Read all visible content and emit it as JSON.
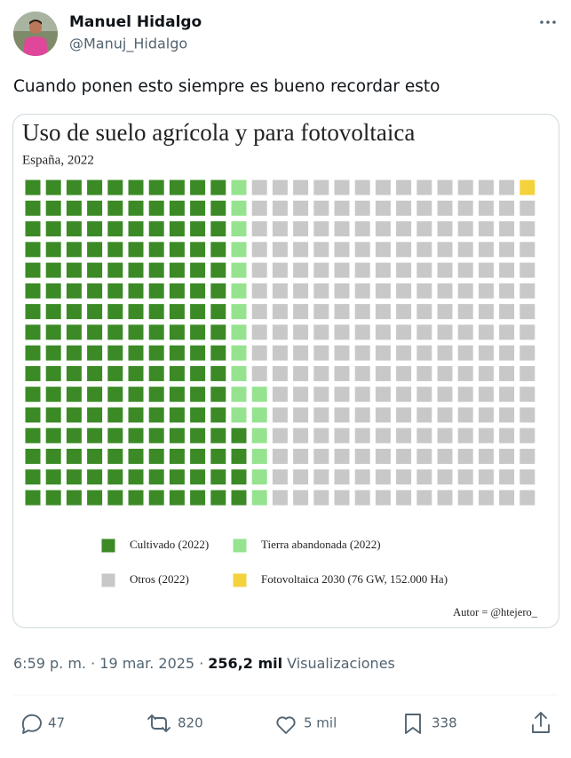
{
  "tweet": {
    "author": {
      "name": "Manuel Hidalgo",
      "handle": "@Manuj_Hidalgo"
    },
    "text": "Cuando ponen esto siempre es bueno recordar esto",
    "timestamp": "6:59 p. m. · 19 mar. 2025 ·",
    "views_count": "256,2 mil",
    "views_label": "Visualizaciones",
    "actions": {
      "replies": "47",
      "retweets": "820",
      "likes": "5 mil",
      "bookmarks": "338"
    }
  },
  "chart_data": {
    "type": "waffle",
    "title": "Uso de suelo agrícola y para fotovoltaica",
    "subtitle": "España, 2022",
    "categories": [
      "Cultivado (2022)",
      "Tierra abandonada (2022)",
      "Otros (2022)",
      "Fotovoltaica 2030 (76 GW, 152.000 Ha)"
    ],
    "values": [
      164,
      18,
      217,
      1
    ],
    "colors": [
      "#3b8a26",
      "#95e38f",
      "#c8c8c8",
      "#f4d23c"
    ],
    "source": "Autor = @htejero_"
  }
}
